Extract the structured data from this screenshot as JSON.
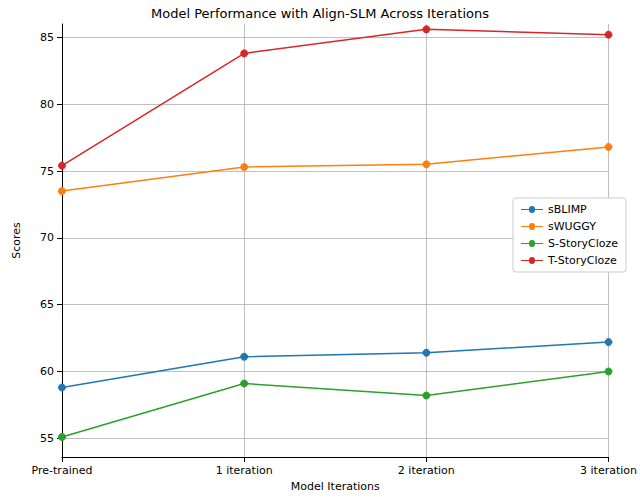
{
  "chart_data": {
    "type": "line",
    "title": "Model Performance with Align-SLM Across Iterations",
    "x_label": "Model Iterations",
    "y_label": "Scores",
    "categories": [
      "Pre-trained",
      "1 iteration",
      "2 iteration",
      "3 iteration"
    ],
    "series": [
      {
        "name": "sBLIMP",
        "color": "#1f77b4",
        "values": [
          58.8,
          61.1,
          61.4,
          62.2
        ]
      },
      {
        "name": "sWUGGY",
        "color": "#ff7f0e",
        "values": [
          73.5,
          75.3,
          75.5,
          76.8
        ]
      },
      {
        "name": "S-StoryCloze",
        "color": "#2ca02c",
        "values": [
          55.1,
          59.1,
          58.2,
          60.0
        ]
      },
      {
        "name": "T-StoryCloze",
        "color": "#d62728",
        "values": [
          75.4,
          83.8,
          85.6,
          85.2
        ]
      }
    ],
    "ylim": [
      53.6,
      86.0
    ],
    "yticks": [
      55,
      60,
      65,
      70,
      75,
      80,
      85
    ],
    "grid": true,
    "legend": "right",
    "marker": "circle",
    "line_style": "solid"
  }
}
